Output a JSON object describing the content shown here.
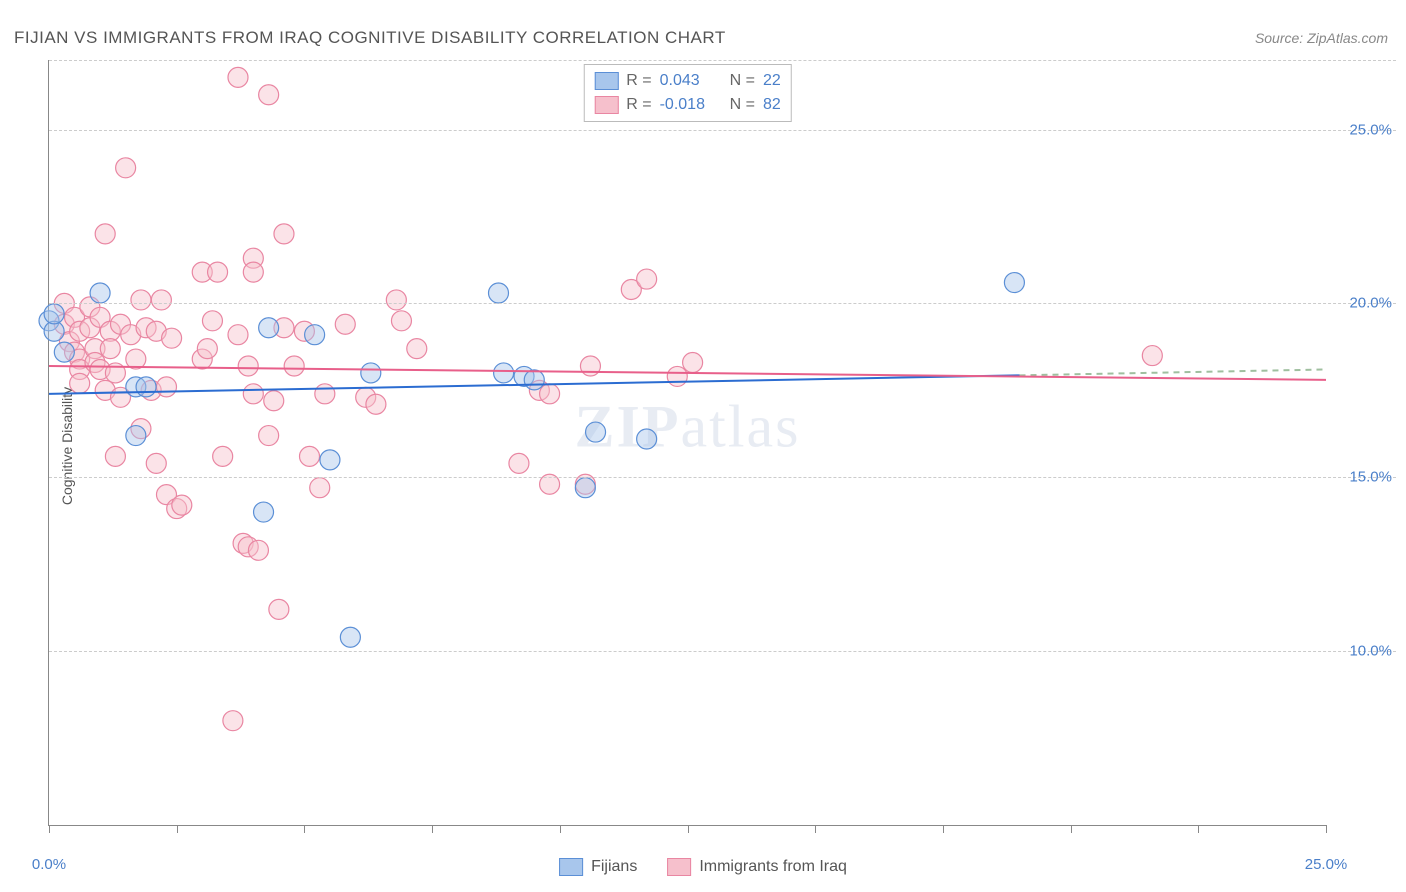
{
  "title": "FIJIAN VS IMMIGRANTS FROM IRAQ COGNITIVE DISABILITY CORRELATION CHART",
  "source": "Source: ZipAtlas.com",
  "ylabel": "Cognitive Disability",
  "watermark": {
    "bold": "ZIP",
    "rest": "atlas"
  },
  "chart": {
    "type": "scatter",
    "xlim": [
      0,
      25
    ],
    "ylim": [
      5,
      27
    ],
    "x_ticks": [
      0,
      2.5,
      5,
      7.5,
      10,
      12.5,
      15,
      17.5,
      20,
      22.5,
      25
    ],
    "x_tick_labels": {
      "0": "0.0%",
      "25": "25.0%"
    },
    "y_gridlines": [
      10,
      15,
      20,
      25,
      27
    ],
    "y_tick_labels": {
      "10": "10.0%",
      "15": "15.0%",
      "20": "20.0%",
      "25": "25.0%"
    },
    "background_color": "#ffffff",
    "grid_color": "#cccccc",
    "marker_radius": 10,
    "marker_opacity": 0.45,
    "series": [
      {
        "name": "Fijians",
        "color_fill": "#a8c6ec",
        "color_stroke": "#5b8fd6",
        "R": "0.043",
        "N": "22",
        "trend": {
          "y_start": 17.4,
          "y_end": 18.1,
          "x_end_solid": 19,
          "color": "#2b6cd1",
          "width": 2
        },
        "points": [
          [
            0.0,
            19.5
          ],
          [
            0.1,
            19.2
          ],
          [
            0.1,
            19.7
          ],
          [
            0.3,
            18.6
          ],
          [
            1.0,
            20.3
          ],
          [
            1.7,
            17.6
          ],
          [
            1.9,
            17.6
          ],
          [
            1.7,
            16.2
          ],
          [
            4.2,
            14.0
          ],
          [
            4.3,
            19.3
          ],
          [
            5.2,
            19.1
          ],
          [
            5.5,
            15.5
          ],
          [
            6.3,
            18.0
          ],
          [
            5.9,
            10.4
          ],
          [
            8.8,
            20.3
          ],
          [
            8.9,
            18.0
          ],
          [
            9.3,
            17.9
          ],
          [
            9.5,
            17.8
          ],
          [
            10.5,
            14.7
          ],
          [
            10.7,
            16.3
          ],
          [
            11.7,
            16.1
          ],
          [
            18.9,
            20.6
          ]
        ]
      },
      {
        "name": "Immigrants from Iraq",
        "color_fill": "#f6c0cc",
        "color_stroke": "#e986a2",
        "R": "-0.018",
        "N": "82",
        "trend": {
          "y_start": 18.2,
          "y_end": 17.8,
          "x_end_solid": 25,
          "color": "#e85f8a",
          "width": 2
        },
        "points": [
          [
            0.3,
            20.0
          ],
          [
            0.3,
            19.4
          ],
          [
            0.4,
            18.9
          ],
          [
            0.5,
            18.6
          ],
          [
            0.5,
            19.6
          ],
          [
            0.6,
            19.2
          ],
          [
            0.6,
            18.4
          ],
          [
            0.6,
            18.1
          ],
          [
            0.6,
            17.7
          ],
          [
            0.8,
            19.9
          ],
          [
            0.8,
            19.3
          ],
          [
            0.9,
            18.7
          ],
          [
            0.9,
            18.3
          ],
          [
            1.0,
            19.6
          ],
          [
            1.0,
            18.1
          ],
          [
            1.1,
            22.0
          ],
          [
            1.1,
            17.5
          ],
          [
            1.2,
            19.2
          ],
          [
            1.2,
            18.7
          ],
          [
            1.3,
            18.0
          ],
          [
            1.3,
            15.6
          ],
          [
            1.4,
            19.4
          ],
          [
            1.4,
            17.3
          ],
          [
            1.5,
            23.9
          ],
          [
            1.6,
            19.1
          ],
          [
            1.7,
            18.4
          ],
          [
            1.8,
            20.1
          ],
          [
            1.8,
            16.4
          ],
          [
            1.9,
            19.3
          ],
          [
            2.0,
            17.5
          ],
          [
            2.1,
            19.2
          ],
          [
            2.1,
            15.4
          ],
          [
            2.2,
            20.1
          ],
          [
            2.3,
            17.6
          ],
          [
            2.3,
            14.5
          ],
          [
            2.4,
            19.0
          ],
          [
            2.5,
            14.1
          ],
          [
            2.6,
            14.2
          ],
          [
            3.0,
            18.4
          ],
          [
            3.0,
            20.9
          ],
          [
            3.1,
            18.7
          ],
          [
            3.2,
            19.5
          ],
          [
            3.3,
            20.9
          ],
          [
            3.4,
            15.6
          ],
          [
            3.6,
            8.0
          ],
          [
            3.7,
            19.1
          ],
          [
            3.7,
            26.5
          ],
          [
            3.8,
            13.1
          ],
          [
            3.9,
            18.2
          ],
          [
            3.9,
            13.0
          ],
          [
            4.0,
            21.3
          ],
          [
            4.0,
            20.9
          ],
          [
            4.0,
            17.4
          ],
          [
            4.1,
            12.9
          ],
          [
            4.3,
            26.0
          ],
          [
            4.4,
            17.2
          ],
          [
            4.5,
            11.2
          ],
          [
            4.6,
            22.0
          ],
          [
            4.6,
            19.3
          ],
          [
            4.8,
            18.2
          ],
          [
            5.0,
            19.2
          ],
          [
            5.1,
            15.6
          ],
          [
            5.3,
            14.7
          ],
          [
            5.4,
            17.4
          ],
          [
            5.8,
            19.4
          ],
          [
            6.2,
            17.3
          ],
          [
            6.4,
            17.1
          ],
          [
            6.8,
            20.1
          ],
          [
            6.9,
            19.5
          ],
          [
            7.2,
            18.7
          ],
          [
            9.2,
            15.4
          ],
          [
            9.6,
            17.5
          ],
          [
            9.8,
            17.4
          ],
          [
            9.8,
            14.8
          ],
          [
            10.5,
            14.8
          ],
          [
            10.6,
            18.2
          ],
          [
            11.4,
            20.4
          ],
          [
            11.7,
            20.7
          ],
          [
            12.3,
            17.9
          ],
          [
            12.6,
            18.3
          ],
          [
            21.6,
            18.5
          ],
          [
            4.3,
            16.2
          ]
        ]
      }
    ]
  },
  "stats_legend": {
    "r_label": "R =",
    "n_label": "N ="
  },
  "bottom_legend": {
    "items": [
      "Fijians",
      "Immigrants from Iraq"
    ]
  }
}
